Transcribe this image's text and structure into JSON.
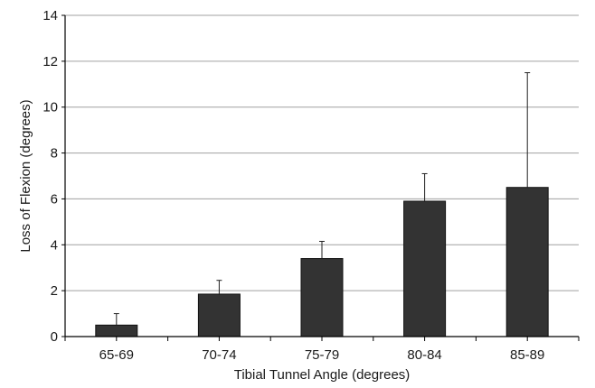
{
  "chart_data": {
    "type": "bar",
    "title": "",
    "xlabel": "Tibial Tunnel Angle (degrees)",
    "ylabel": "Loss of Flexion (degrees)",
    "categories": [
      "65-69",
      "70-74",
      "75-79",
      "80-84",
      "85-89"
    ],
    "values": [
      0.5,
      1.85,
      3.4,
      5.9,
      6.5
    ],
    "error_upper": [
      0.5,
      0.6,
      0.75,
      1.2,
      5.0
    ],
    "ylim": [
      0,
      14
    ],
    "yticks": [
      0,
      2,
      4,
      6,
      8,
      10,
      12,
      14
    ],
    "grid": "horizontal",
    "bar_color": "#333333",
    "grid_color": "#a0a0a0",
    "axis_color": "#000000"
  }
}
